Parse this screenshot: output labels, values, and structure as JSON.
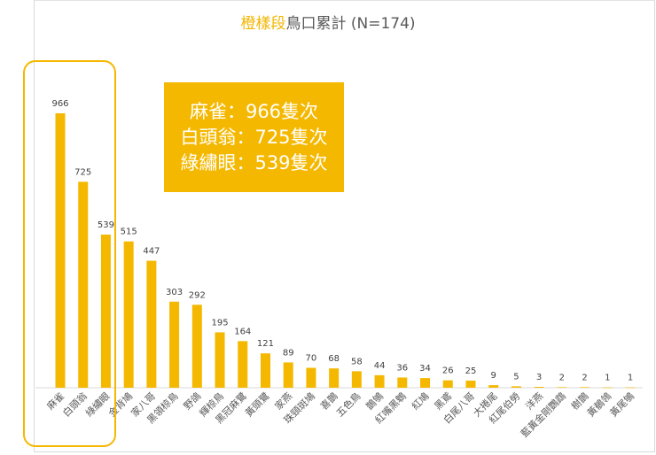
{
  "chart_data": {
    "type": "bar",
    "title_highlight": "橙樣段",
    "title_rest": "鳥口累計 (N=174)",
    "categories": [
      "麻雀",
      "白頭翁",
      "綠繡眼",
      "金背鳩",
      "家八哥",
      "黑領椋鳥",
      "野鴿",
      "輝椋鳥",
      "黑冠麻鷺",
      "黃頭鷺",
      "家燕",
      "珠頸斑鳩",
      "喜鵲",
      "五色鳥",
      "鵲鴝",
      "紅嘴黑鵯",
      "紅鳩",
      "黑鳶",
      "白尾八哥",
      "大捲尾",
      "紅尾伯勞",
      "洋燕",
      "藍黃金剛鸚鵡",
      "樹鵲",
      "黃鶺鴒",
      "黃尾鴝"
    ],
    "values": [
      966,
      725,
      539,
      515,
      447,
      303,
      292,
      195,
      164,
      121,
      89,
      70,
      68,
      58,
      44,
      36,
      34,
      26,
      25,
      9,
      5,
      3,
      2,
      2,
      1,
      1
    ],
    "ylim": [
      0,
      966
    ],
    "grid": false,
    "bar_color": "#f5b800",
    "highlighted_categories": [
      "麻雀",
      "白頭翁",
      "綠繡眼"
    ]
  },
  "annotation": {
    "lines": [
      "麻雀：966隻次",
      "白頭翁：725隻次",
      "綠繡眼：539隻次"
    ],
    "color": "#f5b800"
  }
}
